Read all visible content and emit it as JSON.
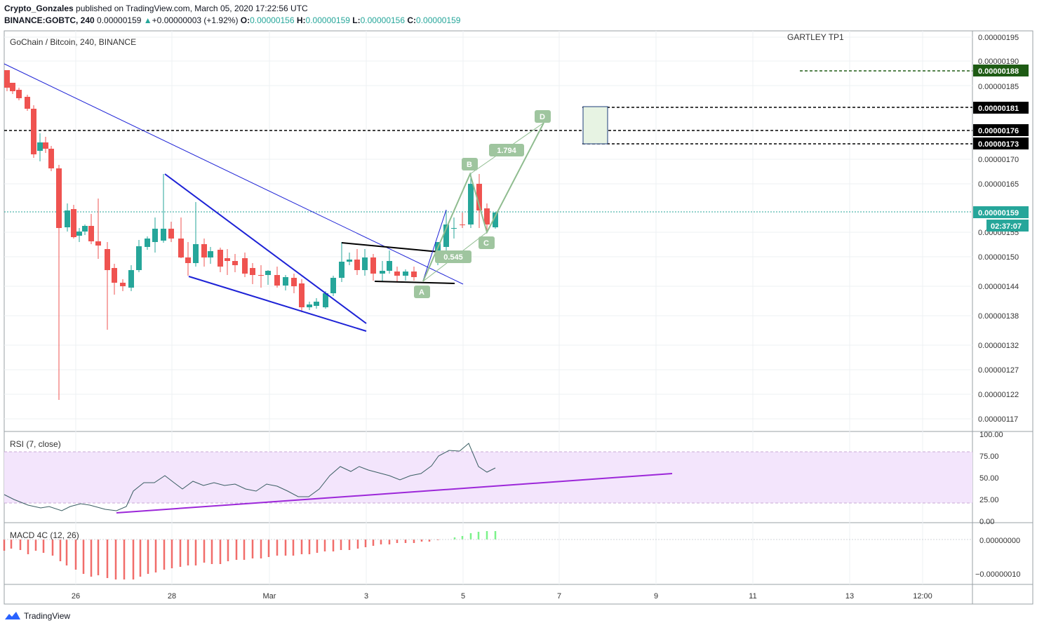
{
  "header": {
    "author": "Crypto_Gonzales",
    "published": "published on TradingView.com, March 05, 2020 17:22:56 UTC",
    "symbol_line": "BINANCE:GOBTC, 240",
    "last": "0.00000159",
    "change": "+0.00000003 (+1.92%)",
    "o_label": "O:",
    "o": "0.00000156",
    "h_label": "H:",
    "h": "0.00000159",
    "l_label": "L:",
    "l": "0.00000156",
    "c_label": "C:",
    "c": "0.00000159"
  },
  "main_pane": {
    "legend": "GoChain / Bitcoin, 240, BINANCE",
    "annotation": "GARTLEY TP1",
    "price_ticks": [
      "0.00000195",
      "0.00000190",
      "0.00000185",
      "0.00000170",
      "0.00000165",
      "0.00000155",
      "0.00000150",
      "0.00000144",
      "0.00000138",
      "0.00000132",
      "0.00000127",
      "0.00000122",
      "0.00000117"
    ],
    "level_tags": [
      {
        "label": "0.00000188",
        "bg": "#1e5b14"
      },
      {
        "label": "0.00000181",
        "bg": "#000000"
      },
      {
        "label": "0.00000176",
        "bg": "#000000"
      },
      {
        "label": "0.00000173",
        "bg": "#000000"
      },
      {
        "label": "0.00000159",
        "bg": "#26a69a"
      },
      {
        "label": "02:37:07",
        "bg": "#26a69a"
      }
    ],
    "pattern_labels": [
      "A",
      "B",
      "C",
      "D",
      "1.794",
      "0.545"
    ]
  },
  "rsi_pane": {
    "legend": "RSI (7, close)",
    "ticks": [
      "100.00",
      "75.00",
      "50.00",
      "25.00",
      "0.00"
    ]
  },
  "macd_pane": {
    "legend": "MACD 4C (12, 26)",
    "ticks": [
      "0.00000000",
      "−0.00000010"
    ]
  },
  "time_axis": [
    "26",
    "28",
    "Mar",
    "3",
    "5",
    "7",
    "9",
    "11",
    "13",
    "12:00"
  ],
  "footer": {
    "brand": "TradingView"
  },
  "colors": {
    "up": "#26a69a",
    "down": "#ef5350",
    "rsi_band": "#f3e5fc",
    "trend_blue": "#1d22d6",
    "trend_purple": "#9c27d9",
    "pattern": "#8fbc8f"
  }
}
